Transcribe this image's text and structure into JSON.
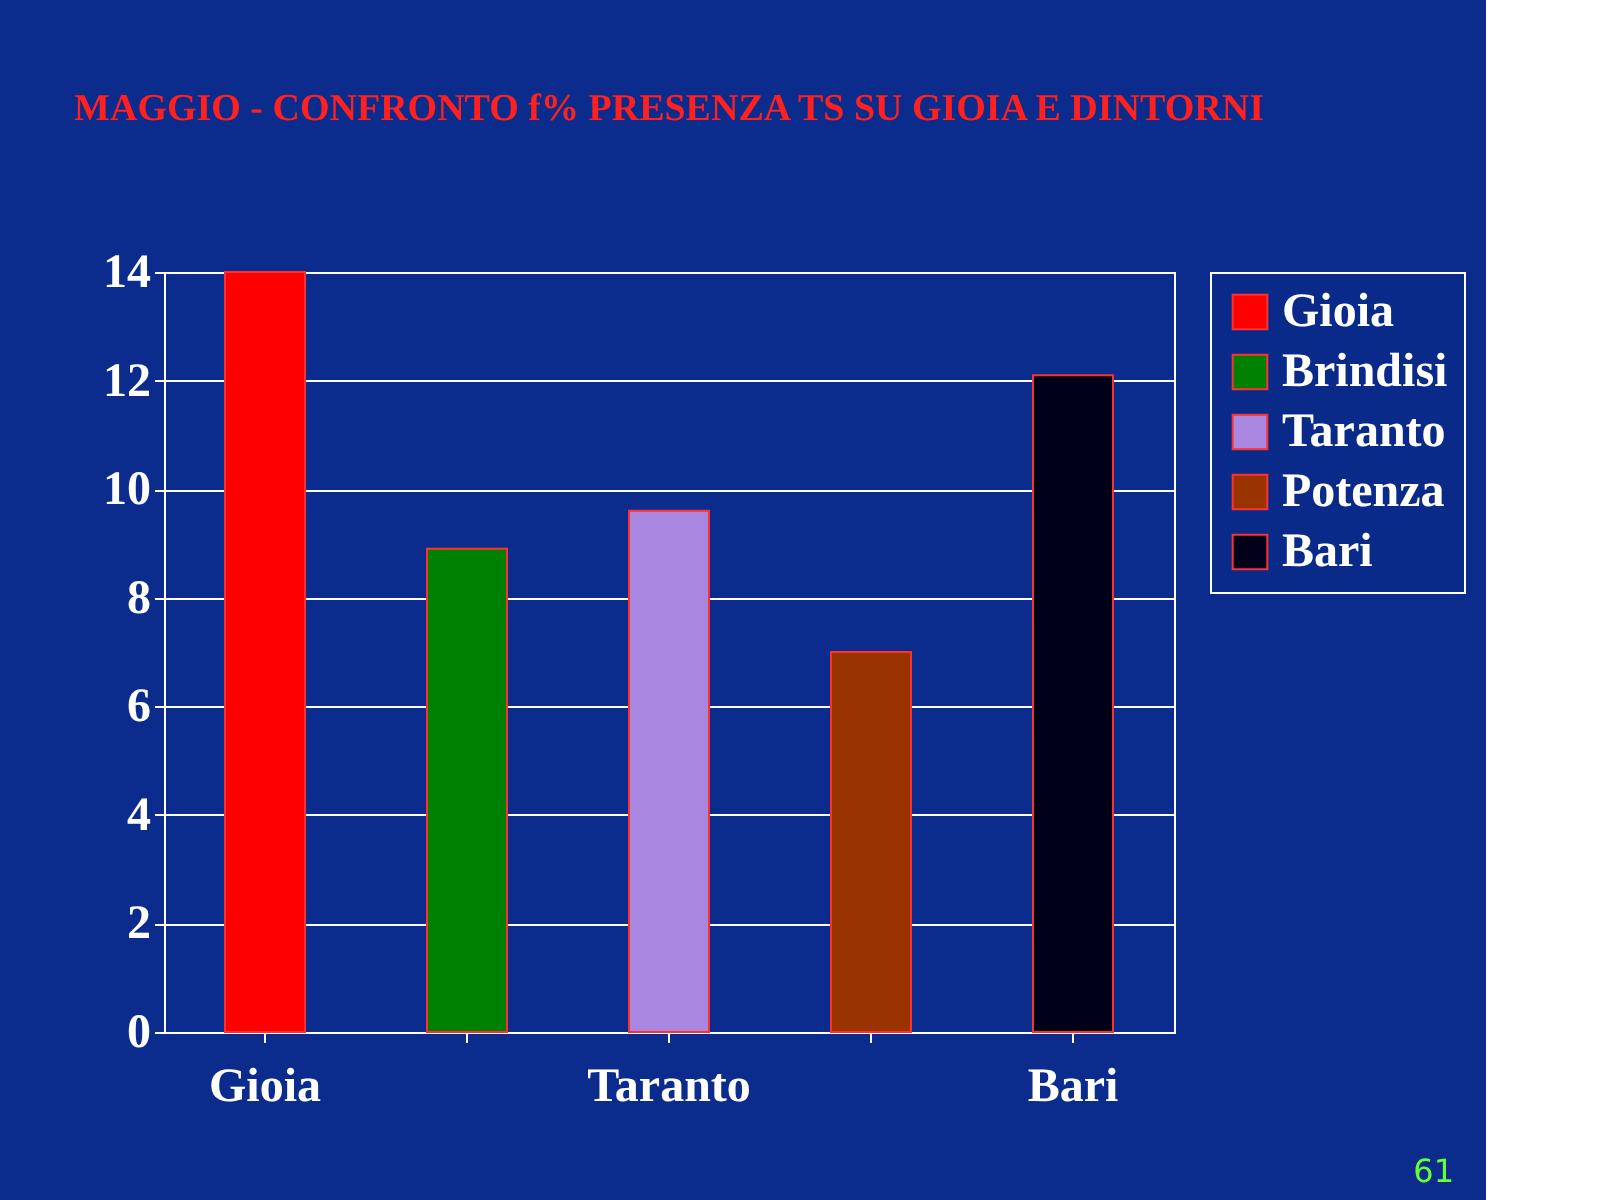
{
  "chart_data": {
    "type": "bar",
    "title": "MAGGIO - CONFRONTO f% PRESENZA TS SU GIOIA E DINTORNI",
    "categories": [
      "Gioia",
      null,
      "Taranto",
      null,
      "Bari"
    ],
    "series": [
      {
        "name": "Gioia",
        "color": "#ff0000",
        "values": [
          14,
          null,
          null,
          null,
          null
        ]
      },
      {
        "name": "Brindisi",
        "color": "#008000",
        "values": [
          null,
          8.9,
          null,
          null,
          null
        ]
      },
      {
        "name": "Taranto",
        "color": "#a987e0",
        "values": [
          null,
          null,
          9.6,
          null,
          null
        ]
      },
      {
        "name": "Potenza",
        "color": "#993300",
        "values": [
          null,
          null,
          null,
          7.0,
          null
        ]
      },
      {
        "name": "Bari",
        "color": "#000018",
        "values": [
          null,
          null,
          null,
          null,
          12.1
        ]
      }
    ],
    "ylim": [
      0,
      14
    ],
    "yticks": [
      0,
      2,
      4,
      6,
      8,
      10,
      12,
      14
    ],
    "grid": "y",
    "legend": "right",
    "annotations": [
      "61"
    ]
  }
}
